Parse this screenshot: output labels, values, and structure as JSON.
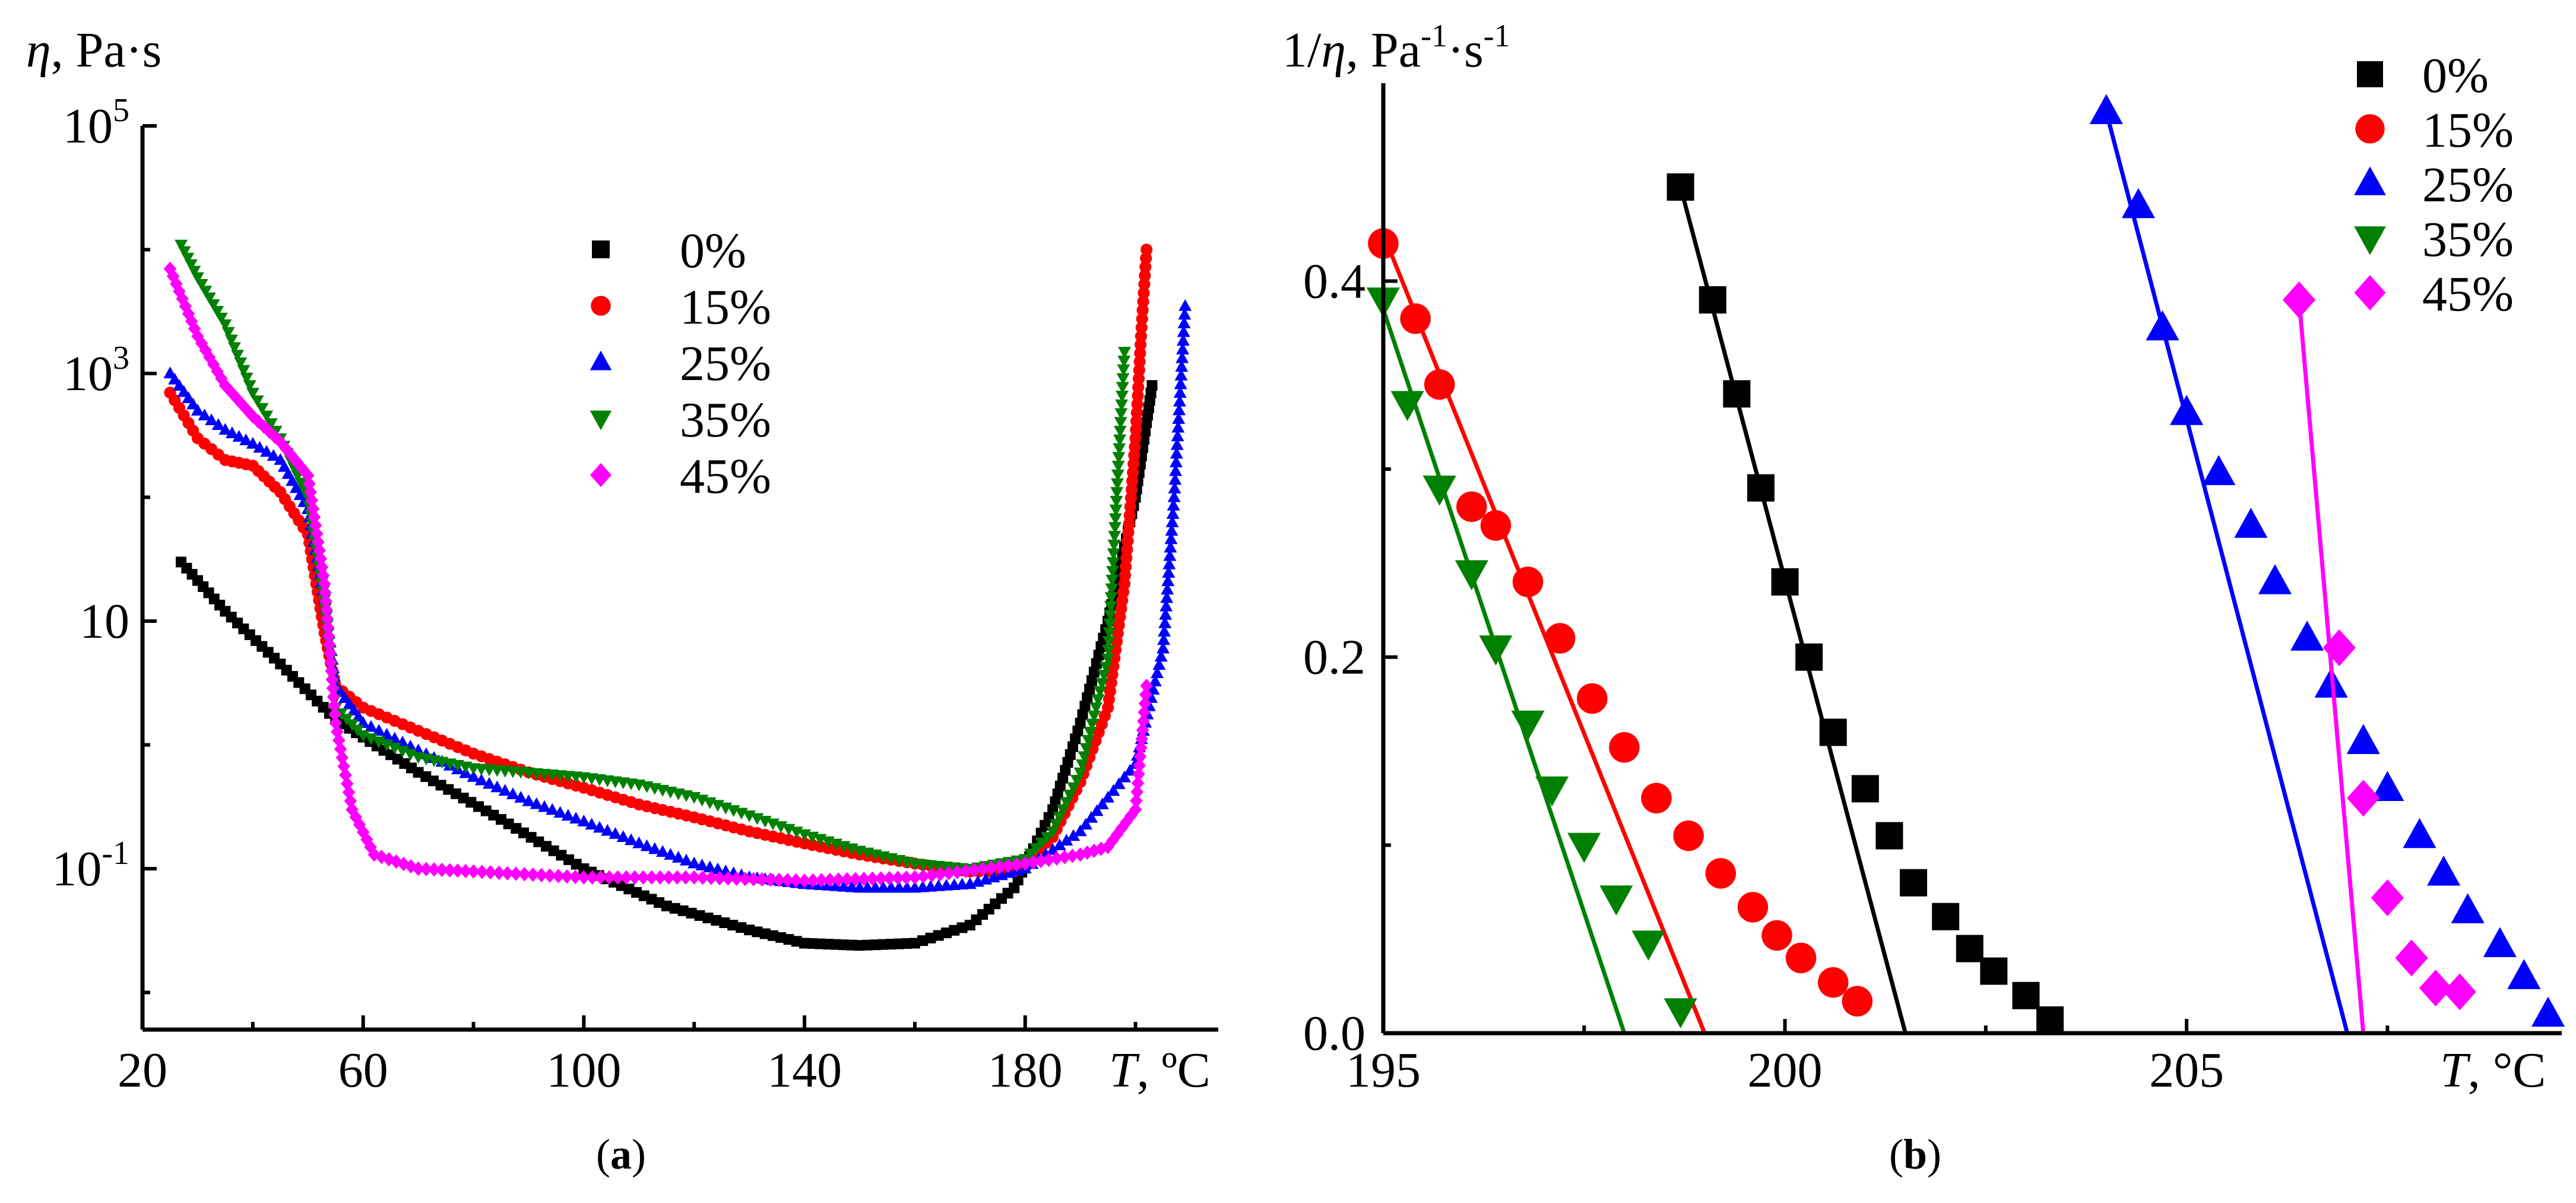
{
  "colors": {
    "s0": "#000000",
    "s15": "#ff0000",
    "s25": "#0000ff",
    "s35": "#008000",
    "s45": "#ff00ff"
  },
  "chart_data": [
    {
      "type": "scatter",
      "panel_label": "a",
      "caption": {
        "open": "(",
        "letter": "a",
        "close": ")"
      },
      "ylabel": {
        "sym": "η",
        "unit": ", Pa·s"
      },
      "xlabel": {
        "sym": "T",
        "unit": ", ºC"
      },
      "xlim": [
        20,
        215
      ],
      "ylim_log10": [
        -2.3,
        5.0
      ],
      "yscale": "log",
      "grid": false,
      "legend_position": "top-center",
      "x_ticks": [
        "20",
        "60",
        "100",
        "140",
        "180"
      ],
      "y_ticks": [
        {
          "base": "10",
          "exp": "5",
          "log": 5
        },
        {
          "base": "10",
          "exp": "3",
          "log": 3
        },
        {
          "base": "10",
          "exp": "",
          "log": 1
        },
        {
          "base": "10",
          "exp": "-1",
          "log": -1
        }
      ],
      "series": [
        {
          "name": "0%",
          "marker": "square",
          "color": "#000000",
          "x": [
            27,
            35,
            45,
            55,
            70,
            85,
            100,
            115,
            130,
            140,
            150,
            160,
            170,
            178,
            185,
            190,
            195,
            200,
            202,
            203
          ],
          "y": [
            30,
            12,
            4.5,
            1.6,
            0.6,
            0.25,
            0.1,
            0.05,
            0.032,
            0.025,
            0.024,
            0.025,
            0.035,
            0.07,
            0.3,
            1.5,
            10,
            100,
            400,
            800
          ]
        },
        {
          "name": "15%",
          "marker": "circle",
          "color": "#ff0000",
          "x": [
            25,
            30,
            35,
            40,
            45,
            50,
            53,
            55,
            60,
            70,
            80,
            90,
            100,
            110,
            120,
            130,
            140,
            150,
            160,
            170,
            178,
            185,
            190,
            195,
            198,
            200,
            201,
            202
          ],
          "y": [
            700,
            300,
            200,
            180,
            110,
            50,
            8,
            3,
            2,
            1.3,
            0.85,
            0.6,
            0.45,
            0.33,
            0.26,
            0.2,
            0.16,
            0.13,
            0.11,
            0.095,
            0.095,
            0.18,
            0.5,
            2,
            20,
            300,
            2000,
            10000
          ]
        },
        {
          "name": "25%",
          "marker": "triangle-up",
          "color": "#0000ff",
          "x": [
            25,
            30,
            35,
            40,
            45,
            50,
            53,
            55,
            60,
            70,
            80,
            90,
            100,
            110,
            120,
            130,
            140,
            150,
            160,
            170,
            180,
            190,
            200,
            205,
            207,
            209
          ],
          "y": [
            1000,
            500,
            350,
            270,
            200,
            80,
            15,
            3,
            1.5,
            0.9,
            0.55,
            0.35,
            0.24,
            0.16,
            0.11,
            0.085,
            0.075,
            0.07,
            0.07,
            0.075,
            0.1,
            0.2,
            0.7,
            6,
            100,
            3500
          ]
        },
        {
          "name": "35%",
          "marker": "triangle-down",
          "color": "#008000",
          "x": [
            27,
            30,
            35,
            40,
            45,
            50,
            53,
            55,
            60,
            70,
            80,
            90,
            100,
            110,
            120,
            130,
            140,
            150,
            160,
            170,
            180,
            185,
            190,
            195,
            198
          ],
          "y": [
            11000,
            6000,
            2500,
            700,
            300,
            100,
            15,
            2,
            1.2,
            0.8,
            0.65,
            0.6,
            0.55,
            0.48,
            0.38,
            0.27,
            0.19,
            0.14,
            0.11,
            0.1,
            0.12,
            0.2,
            0.6,
            5,
            1500
          ]
        },
        {
          "name": "45%",
          "marker": "diamond",
          "color": "#ff00ff",
          "x": [
            25,
            30,
            35,
            40,
            45,
            50,
            53,
            55,
            58,
            62,
            70,
            80,
            100,
            120,
            140,
            160,
            180,
            190,
            195,
            200,
            202
          ],
          "y": [
            7000,
            2000,
            800,
            450,
            280,
            150,
            20,
            1.5,
            0.3,
            0.13,
            0.1,
            0.095,
            0.085,
            0.085,
            0.08,
            0.085,
            0.11,
            0.13,
            0.15,
            0.3,
            3
          ]
        }
      ]
    },
    {
      "type": "scatter",
      "panel_label": "b",
      "caption": {
        "open": "(",
        "letter": "b",
        "close": ")"
      },
      "ylabel": {
        "pre": "1/",
        "sym": "η",
        "unit": ", Pa",
        "exp1": "-1",
        "mid": "·s",
        "exp2": "-1"
      },
      "xlabel": {
        "sym": "T",
        "unit": ", °C"
      },
      "xlim": [
        195,
        209.5
      ],
      "ylim": [
        0,
        0.5
      ],
      "grid": false,
      "legend_position": "top-right",
      "x_ticks": [
        195,
        200,
        205
      ],
      "x_tick_labels": [
        "195",
        "200",
        "205"
      ],
      "y_ticks": [
        0,
        0.2,
        0.4
      ],
      "y_tick_labels": [
        "0.0",
        "0.2",
        "0.4"
      ],
      "series": [
        {
          "name": "0%",
          "marker": "square",
          "color": "#000000",
          "x": [
            198.7,
            199.1,
            199.4,
            199.7,
            200.0,
            200.3,
            200.6,
            201.0,
            201.3,
            201.6,
            202.0,
            202.3,
            202.6,
            203.0,
            203.3
          ],
          "y": [
            0.45,
            0.39,
            0.34,
            0.29,
            0.24,
            0.2,
            0.16,
            0.13,
            0.105,
            0.08,
            0.062,
            0.045,
            0.033,
            0.02,
            0.007
          ],
          "fit_x": [
            198.7,
            201.5
          ],
          "fit_y": [
            0.45,
            0.0
          ]
        },
        {
          "name": "15%",
          "marker": "circle",
          "color": "#ff0000",
          "x": [
            195.0,
            195.4,
            195.7,
            196.1,
            196.4,
            196.8,
            197.2,
            197.6,
            198.0,
            198.4,
            198.8,
            199.2,
            199.6,
            199.9,
            200.2,
            200.6,
            200.9
          ],
          "y": [
            0.42,
            0.38,
            0.345,
            0.28,
            0.27,
            0.24,
            0.21,
            0.178,
            0.152,
            0.125,
            0.105,
            0.085,
            0.067,
            0.052,
            0.04,
            0.027,
            0.017
          ],
          "fit_x": [
            195.0,
            199.0
          ],
          "fit_y": [
            0.425,
            0.0
          ]
        },
        {
          "name": "25%",
          "marker": "triangle-up",
          "color": "#0000ff",
          "x": [
            204.0,
            204.4,
            204.7,
            205.0,
            205.4,
            205.8,
            206.1,
            206.5,
            206.8,
            207.2,
            207.5,
            207.9,
            208.2,
            208.5,
            208.9,
            209.2,
            209.5
          ],
          "y": [
            0.49,
            0.44,
            0.375,
            0.33,
            0.298,
            0.27,
            0.24,
            0.21,
            0.185,
            0.155,
            0.13,
            0.105,
            0.085,
            0.065,
            0.047,
            0.03,
            0.01
          ],
          "fit_x": [
            204.0,
            207.0
          ],
          "fit_y": [
            0.49,
            0.0
          ]
        },
        {
          "name": "35%",
          "marker": "triangle-down",
          "color": "#008000",
          "x": [
            195.0,
            195.3,
            195.7,
            196.1,
            196.4,
            196.8,
            197.1,
            197.5,
            197.9,
            198.3,
            198.7
          ],
          "y": [
            0.39,
            0.335,
            0.29,
            0.245,
            0.205,
            0.165,
            0.13,
            0.1,
            0.072,
            0.048,
            0.012
          ],
          "fit_x": [
            195.0,
            198.0
          ],
          "fit_y": [
            0.385,
            0.0
          ]
        },
        {
          "name": "45%",
          "marker": "diamond",
          "color": "#ff00ff",
          "x": [
            206.4,
            206.9,
            207.2,
            207.5,
            207.8,
            208.1,
            208.4
          ],
          "y": [
            0.39,
            0.205,
            0.125,
            0.072,
            0.04,
            0.024,
            0.022
          ],
          "fit_x": [
            206.4,
            207.2
          ],
          "fit_y": [
            0.39,
            0.0
          ]
        }
      ]
    }
  ]
}
